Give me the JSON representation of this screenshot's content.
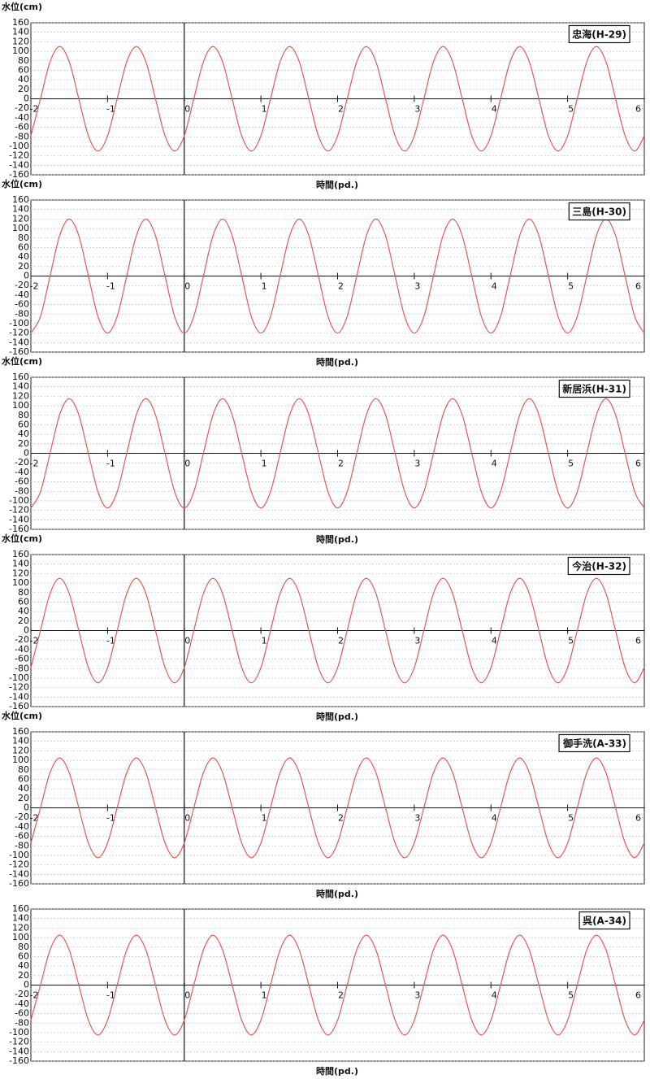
{
  "chart_data": [
    {
      "type": "line",
      "title": "忠海(H-29)",
      "ylabel": "水位(cm)",
      "xlabel": "時間(pd.)",
      "color": "#e05a5a",
      "grid": true,
      "xlim": [
        -2,
        6
      ],
      "ylim": [
        -160,
        160
      ],
      "xticks": [
        -2,
        -1,
        0,
        1,
        2,
        3,
        4,
        5,
        6
      ],
      "yticks": [
        -160,
        -140,
        -120,
        -100,
        -80,
        -60,
        -40,
        -20,
        0,
        20,
        40,
        60,
        80,
        100,
        120,
        140,
        160
      ],
      "x": [
        -2,
        -1.875,
        -1.75,
        -1.625,
        -1.5,
        -1.375,
        -1.25,
        -1.125,
        -1,
        -0.875,
        -0.75,
        -0.625,
        -0.5,
        -0.375,
        -0.25,
        -0.125,
        0,
        0.125,
        0.25,
        0.375,
        0.5,
        0.625,
        0.75,
        0.875,
        1,
        1.125,
        1.25,
        1.375,
        1.5,
        1.625,
        1.75,
        1.875,
        2,
        2.125,
        2.25,
        2.375,
        2.5,
        2.625,
        2.75,
        2.875,
        3,
        3.125,
        3.25,
        3.375,
        3.5,
        3.625,
        3.75,
        3.875,
        4,
        4.125,
        4.25,
        4.375,
        4.5,
        4.625,
        4.75,
        4.875,
        5,
        5.125,
        5.25,
        5.375,
        5.5,
        5.625,
        5.75,
        5.875,
        6
      ],
      "values": [
        -78,
        0,
        78,
        110,
        78,
        0,
        -78,
        -110,
        -78,
        0,
        78,
        110,
        78,
        0,
        -78,
        -110,
        -78,
        0,
        78,
        110,
        78,
        0,
        -78,
        -110,
        -78,
        0,
        78,
        110,
        78,
        0,
        -78,
        -110,
        -78,
        0,
        78,
        110,
        78,
        0,
        -78,
        -110,
        -78,
        0,
        78,
        110,
        78,
        0,
        -78,
        -110,
        -78,
        0,
        78,
        110,
        78,
        0,
        -78,
        -110,
        -78,
        0,
        78,
        110,
        78,
        0,
        -78,
        -110,
        -78
      ]
    },
    {
      "type": "line",
      "title": "三島(H-30)",
      "ylabel": "水位(cm)",
      "xlabel": "時間(pd.)",
      "color": "#e05a5a",
      "grid": true,
      "xlim": [
        -2,
        6
      ],
      "ylim": [
        -160,
        160
      ],
      "xticks": [
        -2,
        -1,
        0,
        1,
        2,
        3,
        4,
        5,
        6
      ],
      "yticks": [
        -160,
        -140,
        -120,
        -100,
        -80,
        -60,
        -40,
        -20,
        0,
        20,
        40,
        60,
        80,
        100,
        120,
        140,
        160
      ],
      "x": [
        -2,
        -1.875,
        -1.75,
        -1.625,
        -1.5,
        -1.375,
        -1.25,
        -1.125,
        -1,
        -0.875,
        -0.75,
        -0.625,
        -0.5,
        -0.375,
        -0.25,
        -0.125,
        0,
        0.125,
        0.25,
        0.375,
        0.5,
        0.625,
        0.75,
        0.875,
        1,
        1.125,
        1.25,
        1.375,
        1.5,
        1.625,
        1.75,
        1.875,
        2,
        2.125,
        2.25,
        2.375,
        2.5,
        2.625,
        2.75,
        2.875,
        3,
        3.125,
        3.25,
        3.375,
        3.5,
        3.625,
        3.75,
        3.875,
        4,
        4.125,
        4.25,
        4.375,
        4.5,
        4.625,
        4.75,
        4.875,
        5,
        5.125,
        5.25,
        5.375,
        5.5,
        5.625,
        5.75,
        5.875,
        6
      ],
      "values": [
        -120,
        -85,
        0,
        85,
        120,
        85,
        0,
        -85,
        -120,
        -85,
        0,
        85,
        120,
        85,
        0,
        -85,
        -120,
        -85,
        0,
        85,
        120,
        85,
        0,
        -85,
        -120,
        -85,
        0,
        85,
        120,
        85,
        0,
        -85,
        -120,
        -85,
        0,
        85,
        120,
        85,
        0,
        -85,
        -120,
        -85,
        0,
        85,
        120,
        85,
        0,
        -85,
        -120,
        -85,
        0,
        85,
        120,
        85,
        0,
        -85,
        -120,
        -85,
        0,
        85,
        120,
        85,
        0,
        -85,
        -120
      ]
    },
    {
      "type": "line",
      "title": "新居浜(H-31)",
      "ylabel": "水位(cm)",
      "xlabel": "時間(pd.)",
      "color": "#e05a5a",
      "grid": true,
      "xlim": [
        -2,
        6
      ],
      "ylim": [
        -160,
        160
      ],
      "xticks": [
        -2,
        -1,
        0,
        1,
        2,
        3,
        4,
        5,
        6
      ],
      "yticks": [
        -160,
        -140,
        -120,
        -100,
        -80,
        -60,
        -40,
        -20,
        0,
        20,
        40,
        60,
        80,
        100,
        120,
        140,
        160
      ],
      "x": [
        -2,
        -1.875,
        -1.75,
        -1.625,
        -1.5,
        -1.375,
        -1.25,
        -1.125,
        -1,
        -0.875,
        -0.75,
        -0.625,
        -0.5,
        -0.375,
        -0.25,
        -0.125,
        0,
        0.125,
        0.25,
        0.375,
        0.5,
        0.625,
        0.75,
        0.875,
        1,
        1.125,
        1.25,
        1.375,
        1.5,
        1.625,
        1.75,
        1.875,
        2,
        2.125,
        2.25,
        2.375,
        2.5,
        2.625,
        2.75,
        2.875,
        3,
        3.125,
        3.25,
        3.375,
        3.5,
        3.625,
        3.75,
        3.875,
        4,
        4.125,
        4.25,
        4.375,
        4.5,
        4.625,
        4.75,
        4.875,
        5,
        5.125,
        5.25,
        5.375,
        5.5,
        5.625,
        5.75,
        5.875,
        6
      ],
      "values": [
        -115,
        -81,
        0,
        81,
        115,
        81,
        0,
        -81,
        -115,
        -81,
        0,
        81,
        115,
        81,
        0,
        -81,
        -115,
        -81,
        0,
        81,
        115,
        81,
        0,
        -81,
        -115,
        -81,
        0,
        81,
        115,
        81,
        0,
        -81,
        -115,
        -81,
        0,
        81,
        115,
        81,
        0,
        -81,
        -115,
        -81,
        0,
        81,
        115,
        81,
        0,
        -81,
        -115,
        -81,
        0,
        81,
        115,
        81,
        0,
        -81,
        -115,
        -81,
        0,
        81,
        115,
        81,
        0,
        -81,
        -115
      ]
    },
    {
      "type": "line",
      "title": "今治(H-32)",
      "ylabel": "水位(cm)",
      "xlabel": "時間(pd.)",
      "color": "#e05a5a",
      "grid": true,
      "xlim": [
        -2,
        6
      ],
      "ylim": [
        -160,
        160
      ],
      "xticks": [
        -2,
        -1,
        0,
        1,
        2,
        3,
        4,
        5,
        6
      ],
      "yticks": [
        -160,
        -140,
        -120,
        -100,
        -80,
        -60,
        -40,
        -20,
        0,
        20,
        40,
        60,
        80,
        100,
        120,
        140,
        160
      ],
      "x": [
        -2,
        -1.875,
        -1.75,
        -1.625,
        -1.5,
        -1.375,
        -1.25,
        -1.125,
        -1,
        -0.875,
        -0.75,
        -0.625,
        -0.5,
        -0.375,
        -0.25,
        -0.125,
        0,
        0.125,
        0.25,
        0.375,
        0.5,
        0.625,
        0.75,
        0.875,
        1,
        1.125,
        1.25,
        1.375,
        1.5,
        1.625,
        1.75,
        1.875,
        2,
        2.125,
        2.25,
        2.375,
        2.5,
        2.625,
        2.75,
        2.875,
        3,
        3.125,
        3.25,
        3.375,
        3.5,
        3.625,
        3.75,
        3.875,
        4,
        4.125,
        4.25,
        4.375,
        4.5,
        4.625,
        4.75,
        4.875,
        5,
        5.125,
        5.25,
        5.375,
        5.5,
        5.625,
        5.75,
        5.875,
        6
      ],
      "values": [
        -78,
        0,
        78,
        110,
        78,
        0,
        -78,
        -110,
        -78,
        0,
        78,
        110,
        78,
        0,
        -78,
        -110,
        -78,
        0,
        78,
        110,
        78,
        0,
        -78,
        -110,
        -78,
        0,
        78,
        110,
        78,
        0,
        -78,
        -110,
        -78,
        0,
        78,
        110,
        78,
        0,
        -78,
        -110,
        -78,
        0,
        78,
        110,
        78,
        0,
        -78,
        -110,
        -78,
        0,
        78,
        110,
        78,
        0,
        -78,
        -110,
        -78,
        0,
        78,
        110,
        78,
        0,
        -78,
        -110,
        -78
      ]
    },
    {
      "type": "line",
      "title": "御手洗(A-33)",
      "ylabel": "水位(cm)",
      "xlabel": "時間(pd.)",
      "color": "#e05a5a",
      "grid": true,
      "xlim": [
        -2,
        6
      ],
      "ylim": [
        -160,
        160
      ],
      "xticks": [
        -2,
        -1,
        0,
        1,
        2,
        3,
        4,
        5,
        6
      ],
      "yticks": [
        -160,
        -140,
        -120,
        -100,
        -80,
        -60,
        -40,
        -20,
        0,
        20,
        40,
        60,
        80,
        100,
        120,
        140,
        160
      ],
      "x": [
        -2,
        -1.875,
        -1.75,
        -1.625,
        -1.5,
        -1.375,
        -1.25,
        -1.125,
        -1,
        -0.875,
        -0.75,
        -0.625,
        -0.5,
        -0.375,
        -0.25,
        -0.125,
        0,
        0.125,
        0.25,
        0.375,
        0.5,
        0.625,
        0.75,
        0.875,
        1,
        1.125,
        1.25,
        1.375,
        1.5,
        1.625,
        1.75,
        1.875,
        2,
        2.125,
        2.25,
        2.375,
        2.5,
        2.625,
        2.75,
        2.875,
        3,
        3.125,
        3.25,
        3.375,
        3.5,
        3.625,
        3.75,
        3.875,
        4,
        4.125,
        4.25,
        4.375,
        4.5,
        4.625,
        4.75,
        4.875,
        5,
        5.125,
        5.25,
        5.375,
        5.5,
        5.625,
        5.75,
        5.875,
        6
      ],
      "values": [
        -74,
        0,
        74,
        105,
        74,
        0,
        -74,
        -105,
        -74,
        0,
        74,
        105,
        74,
        0,
        -74,
        -105,
        -74,
        0,
        74,
        105,
        74,
        0,
        -74,
        -105,
        -74,
        0,
        74,
        105,
        74,
        0,
        -74,
        -105,
        -74,
        0,
        74,
        105,
        74,
        0,
        -74,
        -105,
        -74,
        0,
        74,
        105,
        74,
        0,
        -74,
        -105,
        -74,
        0,
        74,
        105,
        74,
        0,
        -74,
        -105,
        -74,
        0,
        74,
        105,
        74,
        0,
        -74,
        -105,
        -74
      ]
    },
    {
      "type": "line",
      "title": "呉(A-34)",
      "xlabel": "時間(pd.)",
      "color": "#e05a5a",
      "grid": true,
      "xlim": [
        -2,
        6
      ],
      "ylim": [
        -160,
        160
      ],
      "xticks": [
        -2,
        -1,
        0,
        1,
        2,
        3,
        4,
        5,
        6
      ],
      "yticks": [
        -160,
        -140,
        -120,
        -100,
        -80,
        -60,
        -40,
        -20,
        0,
        20,
        40,
        60,
        80,
        100,
        120,
        140,
        160
      ],
      "x": [
        -2,
        -1.875,
        -1.75,
        -1.625,
        -1.5,
        -1.375,
        -1.25,
        -1.125,
        -1,
        -0.875,
        -0.75,
        -0.625,
        -0.5,
        -0.375,
        -0.25,
        -0.125,
        0,
        0.125,
        0.25,
        0.375,
        0.5,
        0.625,
        0.75,
        0.875,
        1,
        1.125,
        1.25,
        1.375,
        1.5,
        1.625,
        1.75,
        1.875,
        2,
        2.125,
        2.25,
        2.375,
        2.5,
        2.625,
        2.75,
        2.875,
        3,
        3.125,
        3.25,
        3.375,
        3.5,
        3.625,
        3.75,
        3.875,
        4,
        4.125,
        4.25,
        4.375,
        4.5,
        4.625,
        4.75,
        4.875,
        5,
        5.125,
        5.25,
        5.375,
        5.5,
        5.625,
        5.75,
        5.875,
        6
      ],
      "values": [
        -74,
        0,
        74,
        105,
        74,
        0,
        -74,
        -105,
        -74,
        0,
        74,
        105,
        74,
        0,
        -74,
        -105,
        -74,
        0,
        74,
        105,
        74,
        0,
        -74,
        -105,
        -74,
        0,
        74,
        105,
        74,
        0,
        -74,
        -105,
        -74,
        0,
        74,
        105,
        74,
        0,
        -74,
        -105,
        -74,
        0,
        74,
        105,
        74,
        0,
        -74,
        -105,
        -74,
        0,
        74,
        105,
        74,
        0,
        -74,
        -105,
        -74,
        0,
        74,
        105,
        74,
        0,
        -74,
        -105,
        -74
      ]
    }
  ]
}
